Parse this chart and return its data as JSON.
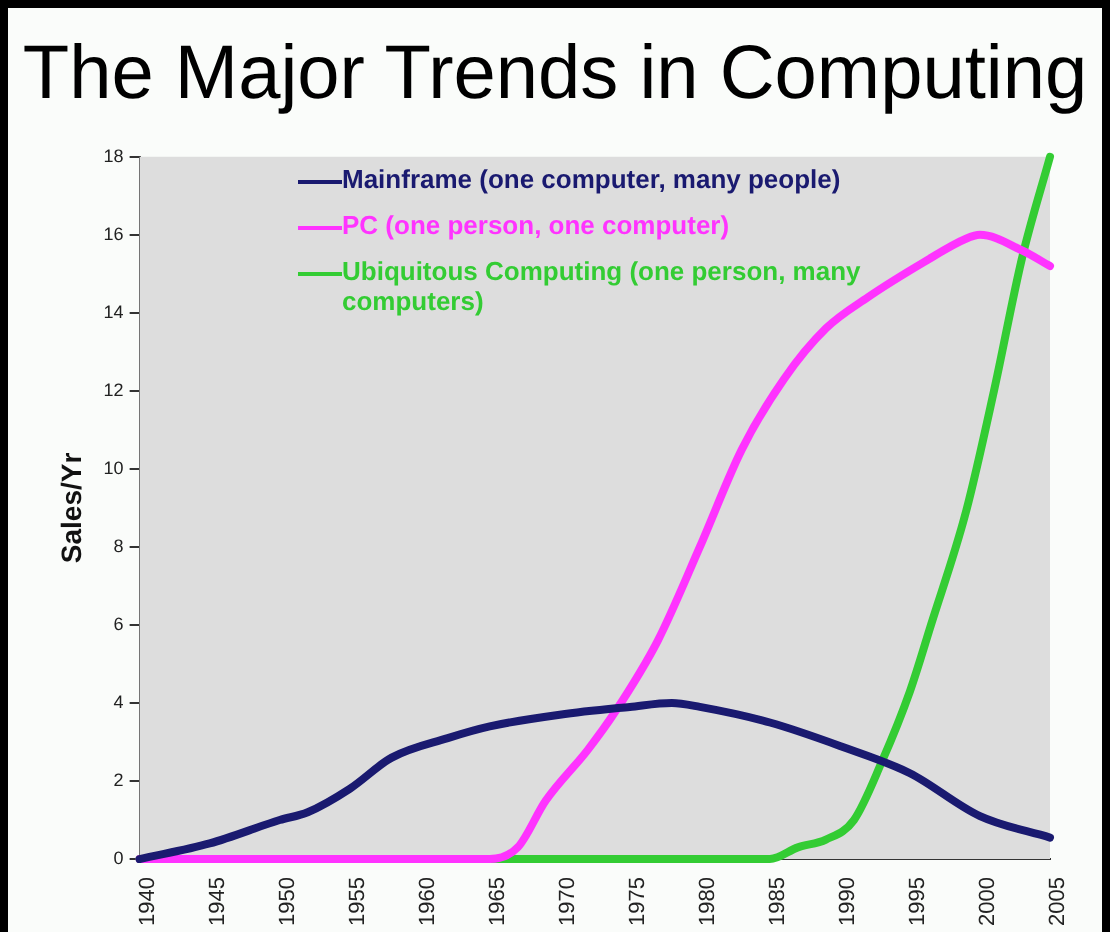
{
  "chart_data": {
    "type": "line",
    "title": "The Major Trends in Computing",
    "ylabel": "Sales/Yr",
    "xlim": [
      1940,
      2005
    ],
    "xticks": [
      1940,
      1945,
      1950,
      1955,
      1960,
      1965,
      1970,
      1975,
      1980,
      1985,
      1990,
      1995,
      2000,
      2005
    ],
    "ylim": [
      0,
      18
    ],
    "yticks": [
      0,
      2,
      4,
      6,
      8,
      10,
      12,
      14,
      16,
      18
    ],
    "grid": false,
    "legend": "top left",
    "marker": "none",
    "line_style": "solid",
    "series": [
      {
        "name": "Mainframe (one computer, many people)",
        "color": "#1a1a70",
        "x": [
          1940,
          1945,
          1950,
          1952,
          1955,
          1958,
          1962,
          1965,
          1970,
          1975,
          1978,
          1980,
          1985,
          1990,
          1995,
          2000,
          2005
        ],
        "values": [
          0,
          0.4,
          1.0,
          1.2,
          1.8,
          2.6,
          3.1,
          3.4,
          3.7,
          3.9,
          4.0,
          3.9,
          3.5,
          2.9,
          2.2,
          1.1,
          0.55
        ]
      },
      {
        "name": "PC (one person, one computer)",
        "color": "#ff33ff",
        "x": [
          1940,
          1965,
          1967,
          1969,
          1972,
          1974,
          1977,
          1980,
          1983,
          1986,
          1989,
          1992,
          1996,
          1999,
          2000,
          2003,
          2005
        ],
        "values": [
          0,
          0,
          0.3,
          1.5,
          2.8,
          3.8,
          5.6,
          8,
          10.5,
          12.3,
          13.6,
          14.4,
          15.3,
          15.9,
          16.0,
          15.6,
          15.2
        ]
      },
      {
        "name": "Ubiquitous Computing (one person, many computers)",
        "color": "#33cc33",
        "x": [
          1940,
          1985,
          1987,
          1989,
          1991,
          1993,
          1995,
          1996.5,
          1999,
          2001,
          2003,
          2005
        ],
        "values": [
          0,
          0,
          0.3,
          0.5,
          1.0,
          2.5,
          4.3,
          6,
          8.9,
          12,
          15.4,
          18
        ]
      }
    ]
  }
}
